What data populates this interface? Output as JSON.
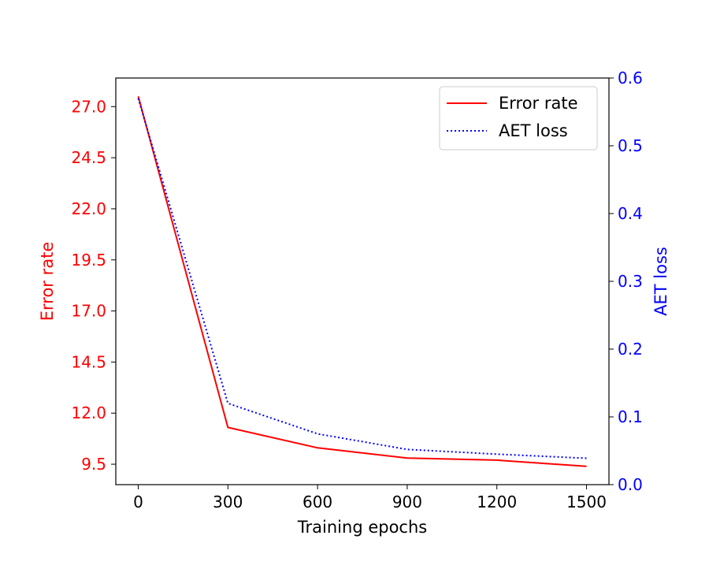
{
  "chart_data": {
    "type": "line",
    "title": "",
    "xlabel": "Training epochs",
    "ylabel_left": "Error rate",
    "ylabel_right": "AET loss",
    "x": [
      0,
      300,
      600,
      900,
      1200,
      1500
    ],
    "x_ticks": [
      0,
      300,
      600,
      900,
      1200,
      1500
    ],
    "x_tick_labels": [
      "0",
      "300",
      "600",
      "900",
      "1200",
      "1500"
    ],
    "xlim": [
      -75,
      1575
    ],
    "y_left_ticks": [
      9.5,
      12.0,
      14.5,
      17.0,
      19.5,
      22.0,
      24.5,
      27.0
    ],
    "y_left_tick_labels": [
      "9.5",
      "12.0",
      "14.5",
      "17.0",
      "19.5",
      "22.0",
      "24.5",
      "27.0"
    ],
    "ylim_left": [
      8.5,
      28.4
    ],
    "y_right_ticks": [
      0.0,
      0.1,
      0.2,
      0.3,
      0.4,
      0.5,
      0.6
    ],
    "y_right_tick_labels": [
      "0.0",
      "0.1",
      "0.2",
      "0.3",
      "0.4",
      "0.5",
      "0.6"
    ],
    "ylim_right": [
      0.0,
      0.6
    ],
    "grid": false,
    "legend_position": "top-right",
    "series": [
      {
        "name": "Error rate",
        "axis": "left",
        "color": "#ff0000",
        "style": "solid",
        "values": [
          27.5,
          11.3,
          10.3,
          9.8,
          9.7,
          9.4
        ]
      },
      {
        "name": "AET loss",
        "axis": "right",
        "color": "#0000ff",
        "style": "dotted",
        "values": [
          0.57,
          0.12,
          0.075,
          0.052,
          0.045,
          0.039
        ]
      }
    ],
    "left_axis_color": "#ff0000",
    "right_axis_color": "#0000ff"
  }
}
